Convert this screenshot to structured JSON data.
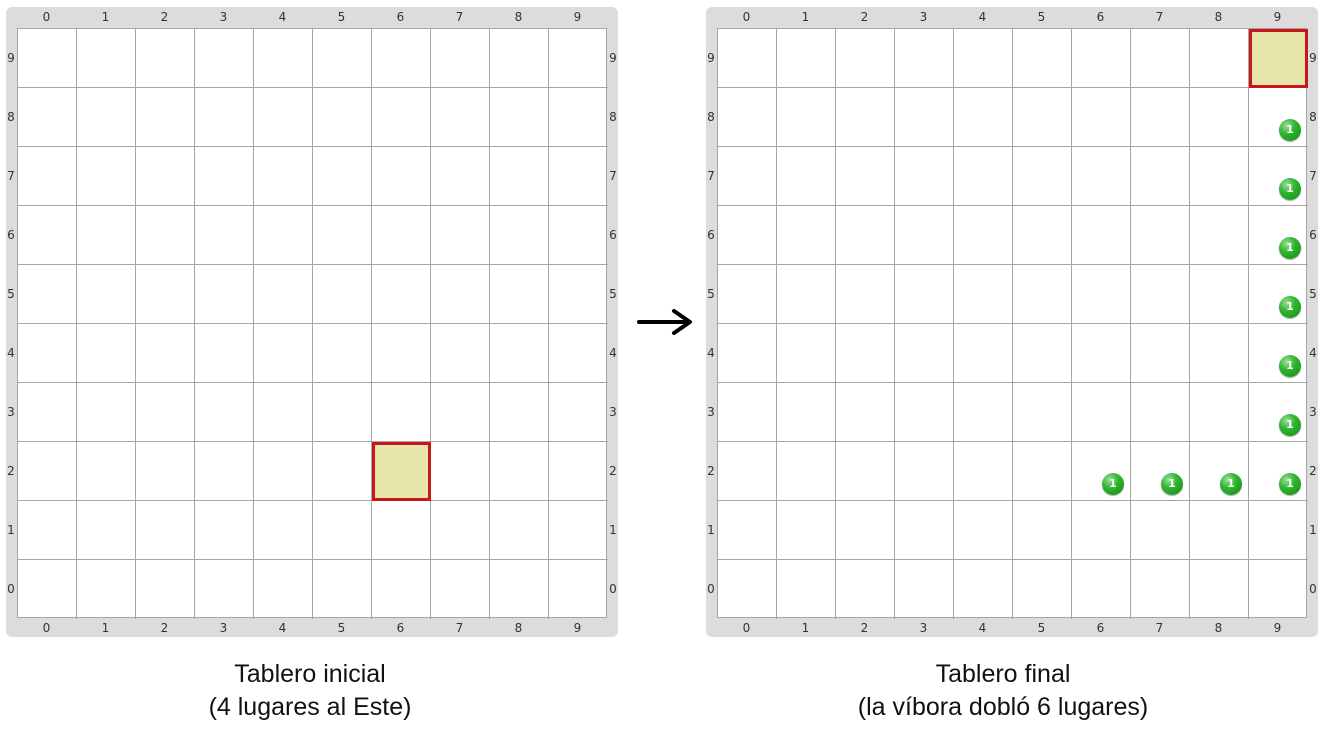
{
  "boards": [
    {
      "id": "initial",
      "coordinate_labels": [
        "0",
        "1",
        "2",
        "3",
        "4",
        "5",
        "6",
        "7",
        "8",
        "9"
      ],
      "head": {
        "col": 6,
        "row": 2
      },
      "marbles": [],
      "caption_line1": "Tablero inicial",
      "caption_line2": "(4 lugares al Este)"
    },
    {
      "id": "final",
      "coordinate_labels": [
        "0",
        "1",
        "2",
        "3",
        "4",
        "5",
        "6",
        "7",
        "8",
        "9"
      ],
      "head": {
        "col": 9,
        "row": 9
      },
      "marbles": [
        {
          "col": 6,
          "row": 2,
          "label": "1"
        },
        {
          "col": 7,
          "row": 2,
          "label": "1"
        },
        {
          "col": 8,
          "row": 2,
          "label": "1"
        },
        {
          "col": 9,
          "row": 2,
          "label": "1"
        },
        {
          "col": 9,
          "row": 3,
          "label": "1"
        },
        {
          "col": 9,
          "row": 4,
          "label": "1"
        },
        {
          "col": 9,
          "row": 5,
          "label": "1"
        },
        {
          "col": 9,
          "row": 6,
          "label": "1"
        },
        {
          "col": 9,
          "row": 7,
          "label": "1"
        },
        {
          "col": 9,
          "row": 8,
          "label": "1"
        }
      ],
      "caption_line1": "Tablero final",
      "caption_line2": "(la víbora dobló 6 lugares)"
    }
  ],
  "colors": {
    "head_fill": "#e6e6aa",
    "head_border": "#c8161c",
    "marble": "#2fb52f",
    "grid_line": "#a6a6a6",
    "board_frame": "#dcdcdc"
  },
  "arrow_icon": "right-arrow-icon"
}
